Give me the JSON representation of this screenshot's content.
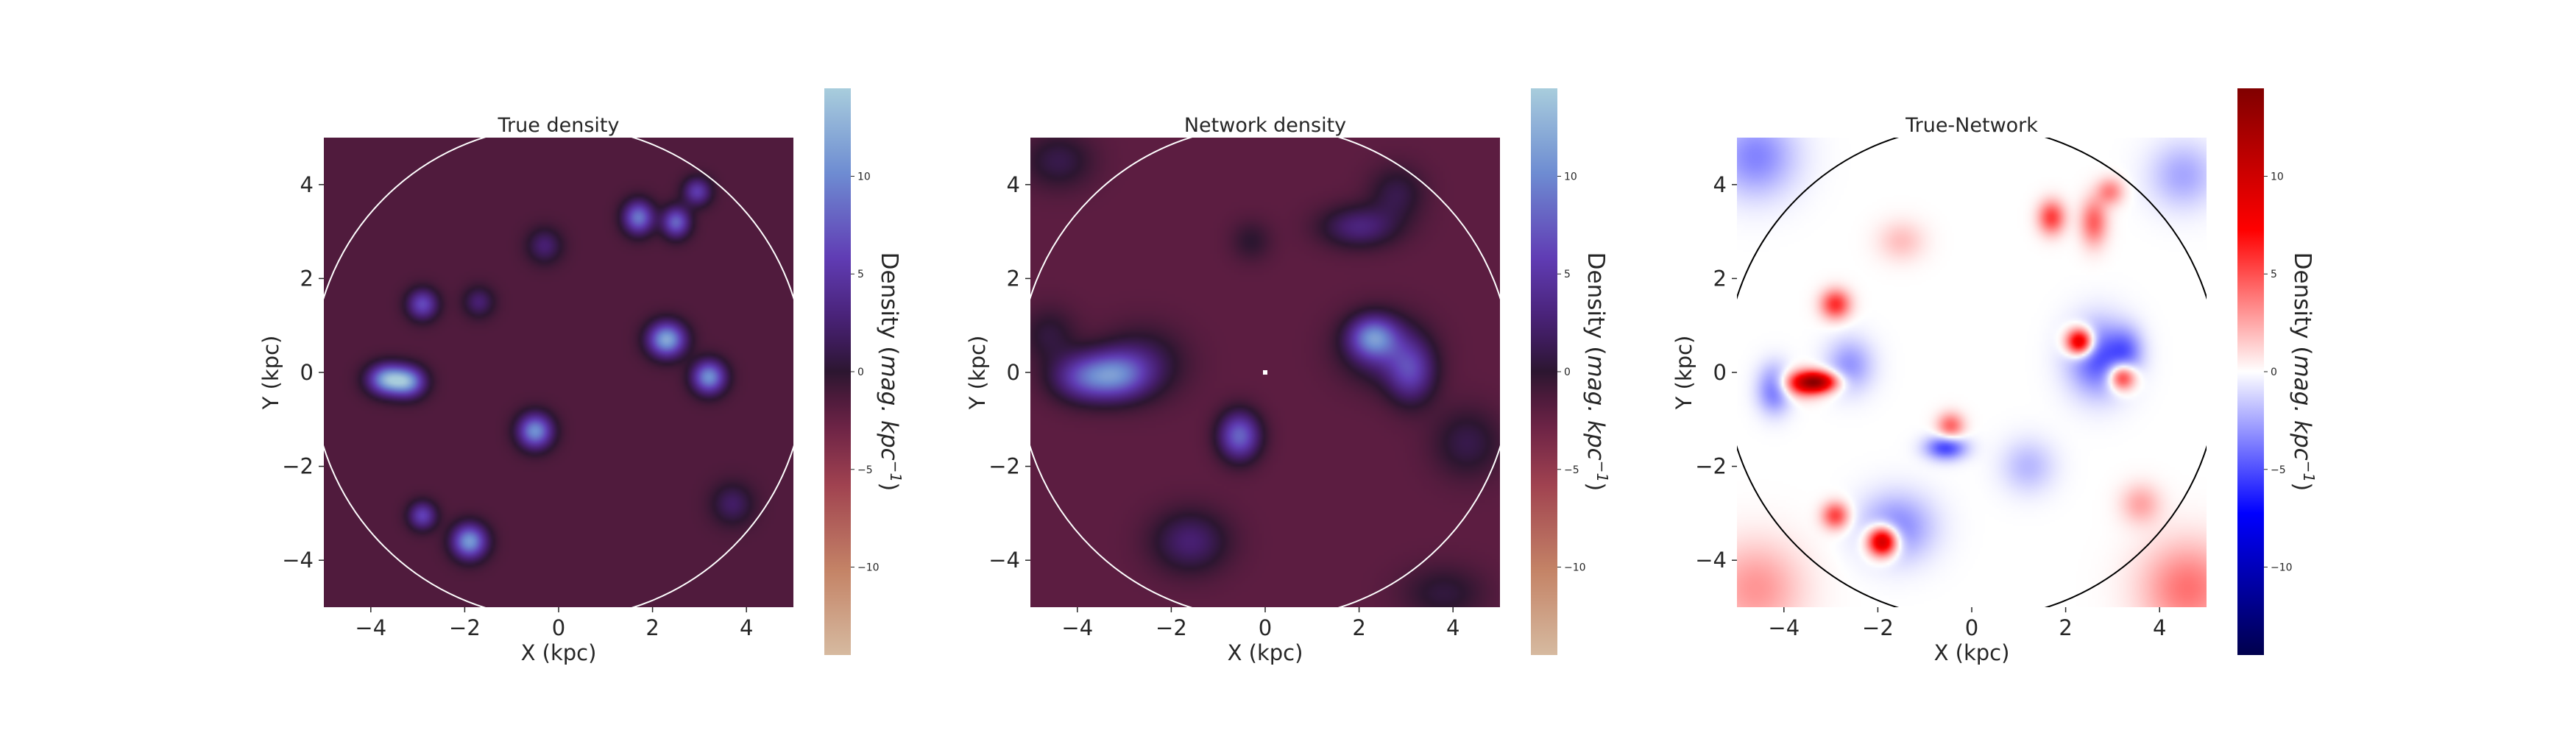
{
  "chart_data": [
    {
      "type": "heatmap",
      "title": "True density",
      "xlabel": "X (kpc)",
      "ylabel": "Y (kpc)",
      "xlim": [
        -5,
        5
      ],
      "ylim": [
        -5,
        5
      ],
      "xticks": [
        -4,
        -2,
        0,
        2,
        4
      ],
      "yticks": [
        -4,
        -2,
        0,
        2,
        4
      ],
      "colormap": "twilight",
      "background_value": -1.5,
      "circle": {
        "center": [
          0,
          0
        ],
        "radius": 5.25,
        "color": "#ffffff"
      },
      "colorbar": {
        "label": "Density",
        "label_units": "mag. kpc",
        "label_exponent": "−1",
        "vmin": -14.5,
        "vmax": 14.5,
        "ticks": [
          -10,
          -5,
          0,
          5,
          10
        ]
      },
      "blobs": [
        {
          "x": -3.65,
          "y": -0.15,
          "amp": 13.0,
          "sx": 0.28,
          "sy": 0.22
        },
        {
          "x": -3.2,
          "y": -0.2,
          "amp": 11.0,
          "sx": 0.25,
          "sy": 0.22
        },
        {
          "x": 2.3,
          "y": 0.7,
          "amp": 13.5,
          "sx": 0.27,
          "sy": 0.25
        },
        {
          "x": 3.2,
          "y": -0.1,
          "amp": 12.0,
          "sx": 0.24,
          "sy": 0.24
        },
        {
          "x": -0.5,
          "y": -1.25,
          "amp": 12.0,
          "sx": 0.25,
          "sy": 0.25
        },
        {
          "x": -1.9,
          "y": -3.6,
          "amp": 12.5,
          "sx": 0.25,
          "sy": 0.25
        },
        {
          "x": 1.7,
          "y": 3.3,
          "amp": 10.5,
          "sx": 0.22,
          "sy": 0.24
        },
        {
          "x": 2.5,
          "y": 3.2,
          "amp": 9.5,
          "sx": 0.2,
          "sy": 0.22
        },
        {
          "x": 2.95,
          "y": 3.85,
          "amp": 7.0,
          "sx": 0.2,
          "sy": 0.2
        },
        {
          "x": -2.9,
          "y": 1.45,
          "amp": 8.0,
          "sx": 0.22,
          "sy": 0.22
        },
        {
          "x": -2.9,
          "y": -3.05,
          "amp": 7.5,
          "sx": 0.2,
          "sy": 0.2
        },
        {
          "x": -1.7,
          "y": 1.5,
          "amp": 4.0,
          "sx": 0.22,
          "sy": 0.22
        },
        {
          "x": -0.3,
          "y": 2.7,
          "amp": 4.0,
          "sx": 0.25,
          "sy": 0.25
        },
        {
          "x": 3.7,
          "y": -2.8,
          "amp": 3.5,
          "sx": 0.3,
          "sy": 0.3
        }
      ]
    },
    {
      "type": "heatmap",
      "title": "Network density",
      "xlabel": "X (kpc)",
      "ylabel": "Y (kpc)",
      "xlim": [
        -5,
        5
      ],
      "ylim": [
        -5,
        5
      ],
      "xticks": [
        -4,
        -2,
        0,
        2,
        4
      ],
      "yticks": [
        -4,
        -2,
        0,
        2,
        4
      ],
      "colormap": "twilight",
      "background_value": -2.0,
      "circle": {
        "center": [
          0,
          0
        ],
        "radius": 5.25,
        "color": "#ffffff"
      },
      "center_marker": {
        "x": 0,
        "y": 0
      },
      "colorbar": {
        "label": "Density",
        "label_units": "mag. kpc",
        "label_exponent": "−1",
        "vmin": -14.5,
        "vmax": 14.5,
        "ticks": [
          -10,
          -5,
          0,
          5,
          10
        ]
      },
      "blobs": [
        {
          "x": -3.8,
          "y": -0.1,
          "amp": 8.5,
          "sx": 0.5,
          "sy": 0.35
        },
        {
          "x": -3.1,
          "y": -0.05,
          "amp": 7.5,
          "sx": 0.45,
          "sy": 0.35
        },
        {
          "x": 2.3,
          "y": 0.75,
          "amp": 9.5,
          "sx": 0.35,
          "sy": 0.3
        },
        {
          "x": 3.1,
          "y": 0.0,
          "amp": 7.0,
          "sx": 0.35,
          "sy": 0.45
        },
        {
          "x": -0.55,
          "y": -1.35,
          "amp": 10.0,
          "sx": 0.3,
          "sy": 0.35
        },
        {
          "x": 2.0,
          "y": 3.1,
          "amp": 5.0,
          "sx": 0.55,
          "sy": 0.3
        },
        {
          "x": 2.5,
          "y": 0.5,
          "amp": 4.5,
          "sx": 0.6,
          "sy": 0.5
        },
        {
          "x": -1.6,
          "y": -3.6,
          "amp": 4.5,
          "sx": 0.55,
          "sy": 0.45
        },
        {
          "x": -2.6,
          "y": 0.2,
          "amp": 3.5,
          "sx": 0.6,
          "sy": 0.5
        },
        {
          "x": -4.4,
          "y": 4.5,
          "amp": 3.0,
          "sx": 0.5,
          "sy": 0.4
        },
        {
          "x": 2.8,
          "y": 3.8,
          "amp": 3.0,
          "sx": 0.4,
          "sy": 0.4
        },
        {
          "x": 4.3,
          "y": -1.5,
          "amp": 3.0,
          "sx": 0.5,
          "sy": 0.5
        },
        {
          "x": 3.8,
          "y": -4.7,
          "amp": 2.5,
          "sx": 0.6,
          "sy": 0.4
        },
        {
          "x": -0.3,
          "y": 2.8,
          "amp": 2.0,
          "sx": 0.3,
          "sy": 0.3
        },
        {
          "x": -4.6,
          "y": 0.8,
          "amp": 2.5,
          "sx": 0.4,
          "sy": 0.4
        }
      ]
    },
    {
      "type": "heatmap",
      "title": "True-Network",
      "xlabel": "X (kpc)",
      "ylabel": "Y (kpc)",
      "xlim": [
        -5,
        5
      ],
      "ylim": [
        -5,
        5
      ],
      "xticks": [
        -4,
        -2,
        0,
        2,
        4
      ],
      "yticks": [
        -4,
        -2,
        0,
        2,
        4
      ],
      "colormap": "seismic",
      "background_value": 0,
      "circle": {
        "center": [
          0,
          0
        ],
        "radius": 5.25,
        "color": "#000000"
      },
      "colorbar": {
        "label": "Density",
        "label_units": "mag. kpc",
        "label_exponent": "−1",
        "vmin": -14.5,
        "vmax": 14.5,
        "ticks": [
          -10,
          -5,
          0,
          5,
          10
        ]
      },
      "blobs": [
        {
          "x": -3.3,
          "y": -0.2,
          "amp": 11.0,
          "sx": 0.3,
          "sy": 0.15
        },
        {
          "x": -3.65,
          "y": -0.25,
          "amp": 5.0,
          "sx": 0.35,
          "sy": 0.2
        },
        {
          "x": -4.2,
          "y": -0.35,
          "amp": -4.5,
          "sx": 0.25,
          "sy": 0.35
        },
        {
          "x": -2.6,
          "y": 0.15,
          "amp": -3.0,
          "sx": 0.35,
          "sy": 0.4
        },
        {
          "x": 2.3,
          "y": 0.65,
          "amp": 11.0,
          "sx": 0.2,
          "sy": 0.2
        },
        {
          "x": 3.2,
          "y": -0.1,
          "amp": 7.5,
          "sx": 0.2,
          "sy": 0.2
        },
        {
          "x": 2.7,
          "y": 0.3,
          "amp": -5.0,
          "sx": 0.45,
          "sy": 0.55
        },
        {
          "x": 3.3,
          "y": 0.45,
          "amp": -3.0,
          "sx": 0.25,
          "sy": 0.35
        },
        {
          "x": -1.9,
          "y": -3.6,
          "amp": 12.0,
          "sx": 0.22,
          "sy": 0.22
        },
        {
          "x": -2.9,
          "y": -3.05,
          "amp": 5.5,
          "sx": 0.2,
          "sy": 0.2
        },
        {
          "x": -1.6,
          "y": -3.3,
          "amp": -3.5,
          "sx": 0.55,
          "sy": 0.5
        },
        {
          "x": -0.55,
          "y": -1.6,
          "amp": -5.5,
          "sx": 0.3,
          "sy": 0.18
        },
        {
          "x": -0.45,
          "y": -1.15,
          "amp": 4.5,
          "sx": 0.2,
          "sy": 0.2
        },
        {
          "x": -2.9,
          "y": 1.45,
          "amp": 6.0,
          "sx": 0.22,
          "sy": 0.22
        },
        {
          "x": 1.7,
          "y": 3.3,
          "amp": 5.5,
          "sx": 0.2,
          "sy": 0.25
        },
        {
          "x": 2.6,
          "y": 3.2,
          "amp": 4.5,
          "sx": 0.2,
          "sy": 0.35
        },
        {
          "x": 2.95,
          "y": 3.85,
          "amp": 3.5,
          "sx": 0.2,
          "sy": 0.2
        },
        {
          "x": 4.6,
          "y": -4.6,
          "amp": 4.0,
          "sx": 0.7,
          "sy": 0.7
        },
        {
          "x": -4.6,
          "y": -4.6,
          "amp": 3.0,
          "sx": 0.7,
          "sy": 0.7
        },
        {
          "x": -4.6,
          "y": 4.6,
          "amp": -3.5,
          "sx": 0.6,
          "sy": 0.6
        },
        {
          "x": 4.5,
          "y": 4.2,
          "amp": -2.5,
          "sx": 0.5,
          "sy": 0.5
        },
        {
          "x": 3.6,
          "y": -2.8,
          "amp": 2.5,
          "sx": 0.3,
          "sy": 0.3
        },
        {
          "x": 1.2,
          "y": -2.0,
          "amp": -2.0,
          "sx": 0.4,
          "sy": 0.4
        },
        {
          "x": -1.5,
          "y": 2.8,
          "amp": 1.8,
          "sx": 0.35,
          "sy": 0.3
        }
      ]
    }
  ]
}
